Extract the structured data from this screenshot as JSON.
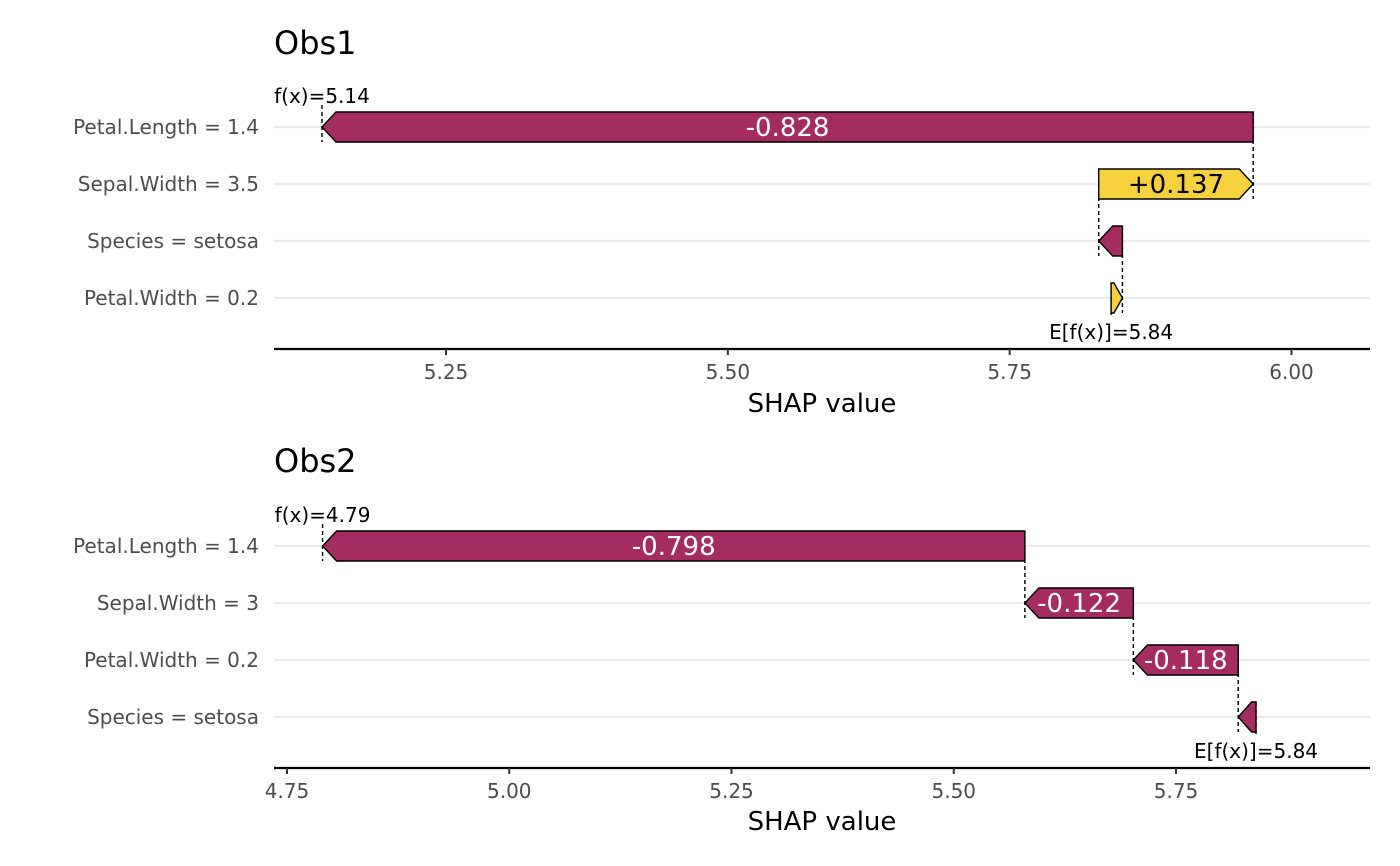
{
  "colors": {
    "negative": "#A52C60",
    "positive": "#F7D13D",
    "neg_label": "#ffffff",
    "pos_label": "#000000"
  },
  "chart_data": [
    {
      "type": "bar",
      "subtype": "waterfall",
      "title": "Obs1",
      "xlabel": "SHAP value",
      "ylabel": "",
      "xlim": [
        5.1,
        6.07
      ],
      "xticks": [
        "5.25",
        "5.50",
        "5.75",
        "6.00"
      ],
      "xtick_values": [
        5.25,
        5.5,
        5.75,
        6.0
      ],
      "fx": 5.14,
      "efx": 5.84,
      "fx_label": "f(x)=5.14",
      "efx_label": "E[f(x)]=5.84",
      "features": [
        {
          "label": "Petal.Length = 1.4",
          "shap": -0.828,
          "text": "-0.828"
        },
        {
          "label": "Sepal.Width = 3.5",
          "shap": 0.137,
          "text": "+0.137"
        },
        {
          "label": "Species = setosa",
          "shap": -0.021,
          "text": ""
        },
        {
          "label": "Petal.Width = 0.2",
          "shap": 0.01,
          "text": ""
        }
      ],
      "grid": true
    },
    {
      "type": "bar",
      "subtype": "waterfall",
      "title": "Obs2",
      "xlabel": "SHAP value",
      "ylabel": "",
      "xlim": [
        4.73,
        6.0
      ],
      "xticks": [
        "4.75",
        "5.00",
        "5.25",
        "5.50",
        "5.75"
      ],
      "xtick_values": [
        4.75,
        5.0,
        5.25,
        5.5,
        5.75
      ],
      "fx": 4.79,
      "efx": 5.84,
      "fx_label": "f(x)=4.79",
      "efx_label": "E[f(x)]=5.84",
      "features": [
        {
          "label": "Petal.Length = 1.4",
          "shap": -0.798,
          "text": "-0.798"
        },
        {
          "label": "Sepal.Width = 3",
          "shap": -0.122,
          "text": "-0.122"
        },
        {
          "label": "Petal.Width = 0.2",
          "shap": -0.118,
          "text": "-0.118"
        },
        {
          "label": "Species = setosa",
          "shap": -0.02,
          "text": ""
        }
      ],
      "grid": true
    }
  ]
}
